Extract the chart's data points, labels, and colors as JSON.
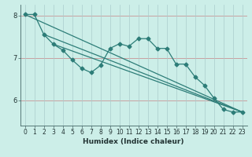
{
  "title": "",
  "xlabel": "Humidex (Indice chaleur)",
  "bg_color": "#cceee8",
  "line_color": "#2d7d78",
  "grid_h_color": "#c8a0a0",
  "grid_v_color": "#aacccc",
  "xlim": [
    -0.5,
    23.5
  ],
  "ylim": [
    5.4,
    8.25
  ],
  "yticks": [
    6,
    7,
    8
  ],
  "xticks": [
    0,
    1,
    2,
    3,
    4,
    5,
    6,
    7,
    8,
    9,
    10,
    11,
    12,
    13,
    14,
    15,
    16,
    17,
    18,
    19,
    20,
    21,
    22,
    23
  ],
  "series1_x": [
    0,
    1,
    2,
    3,
    4,
    5,
    6,
    7,
    8,
    9,
    10,
    11,
    12,
    13,
    14,
    15,
    16,
    17,
    18,
    19,
    20,
    21,
    22,
    23
  ],
  "series1_y": [
    8.02,
    8.02,
    7.55,
    7.32,
    7.18,
    6.95,
    6.75,
    6.65,
    6.82,
    7.22,
    7.33,
    7.27,
    7.45,
    7.45,
    7.22,
    7.22,
    6.85,
    6.85,
    6.55,
    6.35,
    6.05,
    5.78,
    5.72,
    5.72
  ],
  "series2_x": [
    0,
    23
  ],
  "series2_y": [
    8.02,
    5.72
  ],
  "series3_x": [
    2,
    23
  ],
  "series3_y": [
    7.55,
    5.72
  ],
  "series4_x": [
    3,
    23
  ],
  "series4_y": [
    7.32,
    5.72
  ],
  "markersize": 2.5,
  "linewidth": 0.9,
  "tick_fontsize": 5.5,
  "label_fontsize": 6.5
}
